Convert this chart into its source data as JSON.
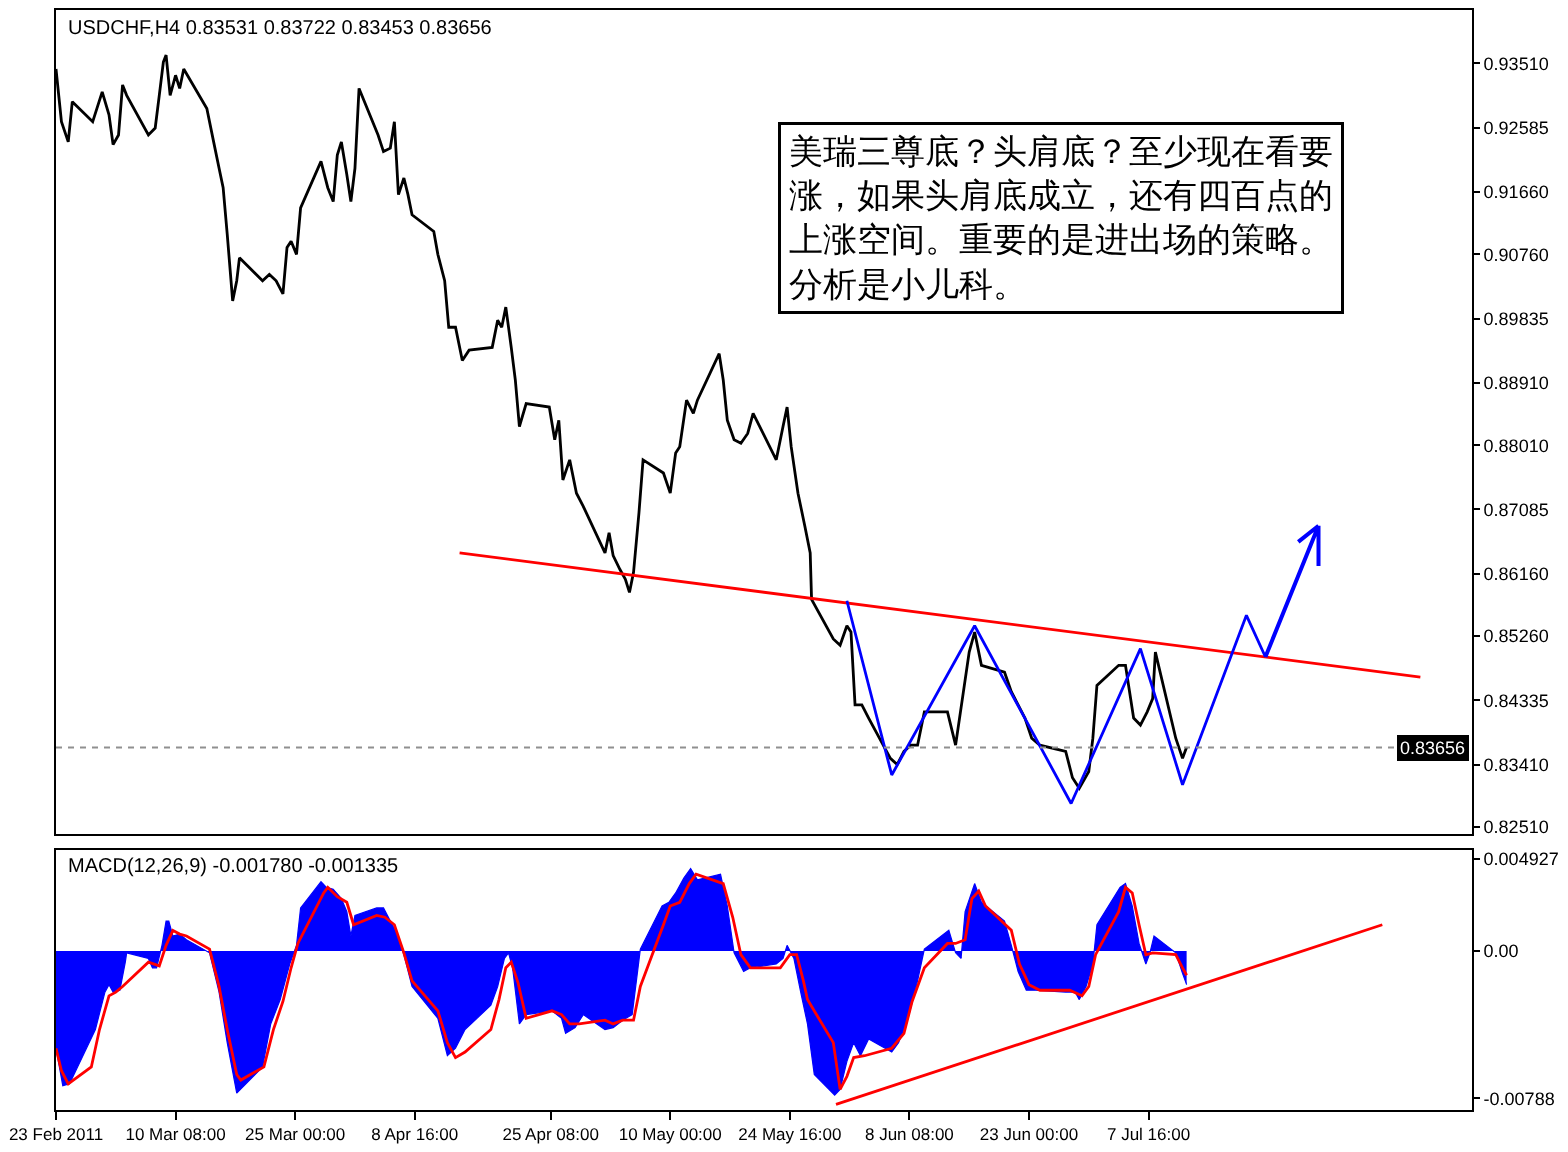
{
  "chart_data": [
    {
      "type": "line",
      "title": "USDCHF,H4 0.83531 0.83722 0.83453 0.83656",
      "series": [
        {
          "color": "#000000",
          "x": [
            "2011-02-23T16:00",
            "2011-02-24T08:00",
            "2011-02-25T04:00",
            "2011-02-25T16:00",
            "2011-02-28T04:00",
            "2011-03-01T08:00",
            "2011-03-02T04:00",
            "2011-03-02T16:00",
            "2011-03-03T08:00",
            "2011-03-03T20:00",
            "2011-03-04T08:00",
            "2011-03-07T00:00",
            "2011-03-07T20:00",
            "2011-03-08T08:00",
            "2011-03-08T20:00",
            "2011-03-09T04:00",
            "2011-03-09T16:00",
            "2011-03-10T08:00",
            "2011-03-10T20:00",
            "2011-03-11T08:00",
            "2011-03-14T04:00",
            "2011-03-15T00:00",
            "2011-03-15T16:00",
            "2011-03-16T04:00",
            "2011-03-16T16:00",
            "2011-03-17T08:00",
            "2011-03-17T20:00",
            "2011-03-18T04:00",
            "2011-03-21T00:00",
            "2011-03-21T20:00",
            "2011-03-22T16:00",
            "2011-03-23T12:00",
            "2011-03-24T00:00",
            "2011-03-24T12:00",
            "2011-03-25T04:00",
            "2011-03-25T16:00",
            "2011-03-28T04:00",
            "2011-03-29T00:00",
            "2011-03-29T16:00",
            "2011-03-30T04:00",
            "2011-03-30T16:00",
            "2011-03-31T08:00",
            "2011-03-31T20:00",
            "2011-04-01T08:00",
            "2011-04-01T20:00",
            "2011-04-04T04:00",
            "2011-04-04T20:00",
            "2011-04-05T16:00",
            "2011-04-06T04:00",
            "2011-04-06T16:00",
            "2011-04-07T08:00",
            "2011-04-07T20:00",
            "2011-04-08T08:00",
            "2011-04-11T00:00",
            "2011-04-11T12:00",
            "2011-04-12T08:00",
            "2011-04-12T20:00",
            "2011-04-13T16:00",
            "2011-04-14T12:00",
            "2011-04-15T08:00",
            "2011-04-18T04:00",
            "2011-04-18T20:00",
            "2011-04-19T08:00",
            "2011-04-19T20:00",
            "2011-04-20T12:00",
            "2011-04-21T00:00",
            "2011-04-21T12:00",
            "2011-04-22T08:00",
            "2011-04-25T04:00",
            "2011-04-25T20:00",
            "2011-04-26T08:00",
            "2011-04-26T20:00",
            "2011-04-27T16:00",
            "2011-04-28T12:00",
            "2011-04-29T08:00",
            "2011-05-02T00:00",
            "2011-05-02T12:00",
            "2011-05-03T00:00",
            "2011-05-03T20:00",
            "2011-05-04T12:00",
            "2011-05-05T00:00",
            "2011-05-05T12:00",
            "2011-05-06T04:00",
            "2011-05-06T16:00",
            "2011-05-09T04:00",
            "2011-05-10T00:00",
            "2011-05-10T16:00",
            "2011-05-11T04:00",
            "2011-05-12T00:00",
            "2011-05-12T20:00",
            "2011-05-13T08:00",
            "2011-05-16T00:00",
            "2011-05-16T12:00",
            "2011-05-17T00:00",
            "2011-05-17T20:00",
            "2011-05-18T16:00",
            "2011-05-19T12:00",
            "2011-05-20T04:00",
            "2011-05-23T00:00",
            "2011-05-23T20:00",
            "2011-05-24T08:00",
            "2011-05-24T20:00",
            "2011-05-25T16:00",
            "2011-05-26T12:00",
            "2011-05-27T04:00",
            "2011-05-27T08:00",
            "2011-05-30T00:00",
            "2011-05-30T20:00",
            "2011-05-31T16:00",
            "2011-06-01T04:00",
            "2011-06-01T16:00",
            "2011-06-02T12:00",
            "2011-06-03T08:00",
            "2011-06-06T00:00",
            "2011-06-06T20:00",
            "2011-06-07T16:00",
            "2011-06-08T12:00",
            "2011-06-09T08:00",
            "2011-06-10T04:00",
            "2011-06-13T00:00",
            "2011-06-14T00:00",
            "2011-06-14T20:00",
            "2011-06-15T16:00",
            "2011-06-16T08:00",
            "2011-06-17T04:00",
            "2011-06-20T00:00",
            "2011-06-20T20:00",
            "2011-06-21T16:00",
            "2011-06-22T12:00",
            "2011-06-23T08:00",
            "2011-06-24T08:00",
            "2011-06-27T12:00",
            "2011-06-28T08:00",
            "2011-06-29T04:00",
            "2011-06-30T08:00",
            "2011-06-30T20:00",
            "2011-07-01T08:00",
            "2011-07-04T00:00",
            "2011-07-04T20:00",
            "2011-07-05T08:00",
            "2011-07-05T20:00",
            "2011-07-06T16:00",
            "2011-07-07T12:00",
            "2011-07-08T04:00",
            "2011-07-08T12:00",
            "2011-07-11T00:00",
            "2011-07-11T20:00",
            "2011-07-12T08:00"
          ],
          "values": [
            0.9343,
            0.9267,
            0.9238,
            0.9296,
            0.9267,
            0.931,
            0.9277,
            0.9234,
            0.9248,
            0.932,
            0.9305,
            0.9248,
            0.9258,
            0.9305,
            0.9353,
            0.9363,
            0.9305,
            0.9334,
            0.9315,
            0.9343,
            0.9286,
            0.9238,
            0.92,
            0.9172,
            0.9105,
            0.9009,
            0.9038,
            0.9071,
            0.9038,
            0.9047,
            0.9038,
            0.9019,
            0.9086,
            0.9095,
            0.9076,
            0.9143,
            0.921,
            0.9172,
            0.9152,
            0.9219,
            0.9238,
            0.9191,
            0.9152,
            0.92,
            0.9315,
            0.9248,
            0.9224,
            0.9229,
            0.9267,
            0.9162,
            0.9186,
            0.9162,
            0.9133,
            0.9109,
            0.9076,
            0.9038,
            0.8971,
            0.8971,
            0.8923,
            0.8938,
            0.8942,
            0.8981,
            0.8971,
            0.9,
            0.8942,
            0.8895,
            0.8828,
            0.8861,
            0.8856,
            0.8809,
            0.8837,
            0.8751,
            0.878,
            0.8732,
            0.8713,
            0.8646,
            0.8675,
            0.8642,
            0.8622,
            0.8608,
            0.8589,
            0.8618,
            0.8704,
            0.878,
            0.8761,
            0.8732,
            0.879,
            0.8799,
            0.8866,
            0.8847,
            0.8866,
            0.8933,
            0.8895,
            0.8837,
            0.8809,
            0.8804,
            0.8818,
            0.8847,
            0.878,
            0.8828,
            0.8856,
            0.8799,
            0.8732,
            0.8685,
            0.8646,
            0.8579,
            0.8522,
            0.8513,
            0.8541,
            0.8532,
            0.8427,
            0.8427,
            0.8408,
            0.835,
            0.8341,
            0.836,
            0.8369,
            0.8369,
            0.8417,
            0.8417,
            0.8369,
            0.8436,
            0.8503,
            0.8532,
            0.8484,
            0.8474,
            0.8446,
            0.8427,
            0.8408,
            0.8379,
            0.8369,
            0.836,
            0.8322,
            0.8307,
            0.8331,
            0.8379,
            0.8455,
            0.8484,
            0.8484,
            0.8446,
            0.8408,
            0.8398,
            0.8417,
            0.8436,
            0.8503,
            0.8379,
            0.835,
            0.8366
          ]
        },
        {
          "color": "#ff0000",
          "x": [
            "2011-04-14T04:00",
            "2011-08-10T00:00"
          ],
          "values": [
            0.8646,
            0.8467
          ]
        },
        {
          "color": "#0000ff",
          "x": [
            "2011-05-31T16:00",
            "2011-06-06T04:00",
            "2011-06-16T08:00",
            "2011-06-28T04:00",
            "2011-07-06T16:00",
            "2011-07-11T20:00",
            "2011-07-19T16:00",
            "2011-07-22T00:00"
          ],
          "values": [
            0.8577,
            0.8326,
            0.8541,
            0.8285,
            0.8508,
            0.8312,
            0.8556,
            0.8496
          ]
        }
      ],
      "xlim": [
        "2011-02-23T16:00",
        "2011-08-16T08:00"
      ],
      "ylim": [
        0.8241,
        0.9428
      ],
      "yticks": [
        {
          "value": 0.9351,
          "label": "0.93510"
        },
        0.92585,
        {
          "value": 0.9166,
          "label": "0.91660"
        },
        {
          "value": 0.9076,
          "label": "0.90760"
        },
        0.89835,
        {
          "value": 0.8891,
          "label": "0.88910"
        },
        {
          "value": 0.8801,
          "label": "0.88010"
        },
        0.87085,
        {
          "value": 0.8616,
          "label": "0.86160"
        },
        {
          "value": 0.8526,
          "label": "0.85260"
        },
        0.84335,
        {
          "value": 0.8341,
          "label": "0.83410"
        },
        {
          "value": 0.8251,
          "label": "0.82510"
        }
      ],
      "ref_lines": [
        {
          "axis": "y",
          "value": 0.83656,
          "label": "0.83656",
          "color": "#909090",
          "line_style": "dotted"
        }
      ],
      "annotations": [
        "美瑞三尊底？头肩底？至少现在看要涨，如果头肩底成立，还有四百点的上涨空间。重要的是进出场的策略。分析是小儿科。"
      ],
      "tick_labels": "y"
    },
    {
      "type": "area",
      "title": "MACD(12,26,9) -0.001780 -0.001335",
      "series": [
        {
          "type": "area",
          "color": "#0000ff",
          "x": [
            "2011-02-23T16:00",
            "2011-02-24T12:00",
            "2011-02-25T08:00",
            "2011-02-28T12:00",
            "2011-03-01T16:00",
            "2011-03-02T04:00",
            "2011-03-02T16:00",
            "2011-03-03T12:00",
            "2011-03-04T04:00",
            "2011-03-04T08:00",
            "2011-03-07T00:00",
            "2011-03-07T12:00",
            "2011-03-08T00:00",
            "2011-03-08T16:00",
            "2011-03-09T04:00",
            "2011-03-09T12:00",
            "2011-03-10T00:00",
            "2011-03-10T20:00",
            "2011-03-11T16:00",
            "2011-03-14T12:00",
            "2011-03-15T16:00",
            "2011-03-16T16:00",
            "2011-03-17T20:00",
            "2011-03-21T00:00",
            "2011-03-22T00:00",
            "2011-03-23T04:00",
            "2011-03-24T08:00",
            "2011-03-25T04:00",
            "2011-03-25T16:00",
            "2011-03-28T04:00",
            "2011-03-28T20:00",
            "2011-03-29T16:00",
            "2011-03-30T16:00",
            "2011-03-31T08:00",
            "2011-03-31T20:00",
            "2011-04-01T08:00",
            "2011-04-04T00:00",
            "2011-04-04T20:00",
            "2011-04-05T16:00",
            "2011-04-06T12:00",
            "2011-04-07T08:00",
            "2011-04-08T08:00",
            "2011-04-11T12:00",
            "2011-04-12T16:00",
            "2011-04-13T16:00",
            "2011-04-14T20:00",
            "2011-04-18T00:00",
            "2011-04-18T20:00",
            "2011-04-19T16:00",
            "2011-04-20T04:00",
            "2011-04-20T16:00",
            "2011-04-21T12:00",
            "2011-04-22T08:00",
            "2011-04-25T12:00",
            "2011-04-26T16:00",
            "2011-04-27T04:00",
            "2011-04-28T08:00",
            "2011-04-29T08:00",
            "2011-05-02T00:00",
            "2011-05-03T00:00",
            "2011-05-04T04:00",
            "2011-05-05T08:00",
            "2011-05-06T08:00",
            "2011-05-09T00:00",
            "2011-05-09T20:00",
            "2011-05-10T16:00",
            "2011-05-11T16:00",
            "2011-05-12T12:00",
            "2011-05-13T08:00",
            "2011-05-16T04:00",
            "2011-05-17T00:00",
            "2011-05-17T20:00",
            "2011-05-19T00:00",
            "2011-05-19T20:00",
            "2011-05-23T00:00",
            "2011-05-23T20:00",
            "2011-05-24T08:00",
            "2011-05-25T04:00",
            "2011-05-26T00:00",
            "2011-05-26T20:00",
            "2011-05-27T16:00",
            "2011-05-30T04:00",
            "2011-05-30T20:00",
            "2011-05-31T16:00",
            "2011-06-01T12:00",
            "2011-06-02T08:00",
            "2011-06-03T08:00",
            "2011-06-06T04:00",
            "2011-06-07T00:00",
            "2011-06-08T04:00",
            "2011-06-09T08:00",
            "2011-06-10T04:00",
            "2011-06-13T04:00",
            "2011-06-14T00:00",
            "2011-06-14T16:00",
            "2011-06-15T04:00",
            "2011-06-16T08:00",
            "2011-06-17T04:00",
            "2011-06-20T00:00",
            "2011-06-20T20:00",
            "2011-06-21T16:00",
            "2011-06-22T16:00",
            "2011-06-23T20:00",
            "2011-06-27T12:00",
            "2011-06-28T16:00",
            "2011-06-29T04:00",
            "2011-06-30T00:00",
            "2011-06-30T20:00",
            "2011-07-01T08:00",
            "2011-07-04T04:00",
            "2011-07-04T20:00",
            "2011-07-05T16:00",
            "2011-07-06T12:00",
            "2011-07-07T08:00",
            "2011-07-07T20:00",
            "2011-07-08T08:00",
            "2011-07-11T00:00",
            "2011-07-11T20:00",
            "2011-07-12T08:00"
          ],
          "values": [
            -0.0052,
            -0.0072,
            -0.0071,
            -0.0042,
            -0.0022,
            -0.0018,
            -0.0022,
            -0.0021,
            -0.0006,
            -0.0001,
            -0.0004,
            -0.0009,
            -0.0009,
            0.0003,
            0.0016,
            0.0016,
            0.0008,
            0.0009,
            0.0006,
            -0.0001,
            -0.0022,
            -0.0049,
            -0.0076,
            -0.0062,
            -0.0039,
            -0.0026,
            -0.0007,
            0.0003,
            0.0023,
            0.0037,
            0.0034,
            0.0033,
            0.0028,
            0.0021,
            0.0008,
            0.0019,
            0.0023,
            0.0023,
            0.0016,
            0.0009,
            -0.0002,
            -0.0019,
            -0.0036,
            -0.0056,
            -0.0052,
            -0.0042,
            -0.0029,
            -0.0019,
            -0.0004,
            -0.0001,
            -0.0009,
            -0.0039,
            -0.0034,
            -0.0032,
            -0.0036,
            -0.0044,
            -0.0041,
            -0.0034,
            -0.0042,
            -0.0041,
            -0.0037,
            -0.0034,
            0.0001,
            0.0024,
            0.0026,
            0.0031,
            0.0039,
            0.0044,
            0.0038,
            0.0041,
            0.0024,
            -0.0001,
            -0.0011,
            -0.0009,
            -0.0007,
            -0.0004,
            0.0003,
            -0.0004,
            -0.0022,
            -0.0039,
            -0.0066,
            -0.0077,
            -0.0074,
            -0.0059,
            -0.0049,
            -0.0056,
            -0.0047,
            -0.0054,
            -0.0049,
            -0.0036,
            -0.0016,
            0.0001,
            0.0011,
            -0.0001,
            -0.0004,
            0.0021,
            0.0036,
            0.0026,
            0.0016,
            0.0003,
            -0.0011,
            -0.0021,
            -0.0021,
            -0.0022,
            -0.0022,
            -0.0026,
            -0.0019,
            -0.0007,
            0.0014,
            0.0034,
            0.0036,
            0.0024,
            0.0004,
            -0.0007,
            -0.0001,
            0.0008,
            -0.0001,
            -0.0012,
            -0.0018
          ]
        },
        {
          "type": "line",
          "color": "#ff0000",
          "x": [
            "2011-02-23T16:00",
            "2011-02-24T08:00",
            "2011-02-25T04:00",
            "2011-02-28T00:00",
            "2011-03-01T00:00",
            "2011-03-02T04:00",
            "2011-03-03T00:00",
            "2011-03-03T20:00",
            "2011-03-07T00:00",
            "2011-03-08T08:00",
            "2011-03-09T04:00",
            "2011-03-10T00:00",
            "2011-03-10T20:00",
            "2011-03-11T16:00",
            "2011-03-14T12:00",
            "2011-03-15T16:00",
            "2011-03-16T16:00",
            "2011-03-17T20:00",
            "2011-03-18T08:00",
            "2011-03-21T04:00",
            "2011-03-22T08:00",
            "2011-03-23T12:00",
            "2011-03-24T12:00",
            "2011-03-25T08:00",
            "2011-03-28T12:00",
            "2011-03-29T00:00",
            "2011-03-30T04:00",
            "2011-03-31T08:00",
            "2011-04-01T04:00",
            "2011-04-04T00:00",
            "2011-04-05T00:00",
            "2011-04-06T04:00",
            "2011-04-07T08:00",
            "2011-04-08T08:00",
            "2011-04-11T12:00",
            "2011-04-12T16:00",
            "2011-04-13T16:00",
            "2011-04-14T20:00",
            "2011-04-18T00:00",
            "2011-04-19T00:00",
            "2011-04-19T20:00",
            "2011-04-20T12:00",
            "2011-04-21T08:00",
            "2011-04-22T08:00",
            "2011-04-25T12:00",
            "2011-04-26T16:00",
            "2011-04-27T16:00",
            "2011-04-28T20:00",
            "2011-05-02T00:00",
            "2011-05-03T00:00",
            "2011-05-04T04:00",
            "2011-05-05T12:00",
            "2011-05-06T08:00",
            "2011-05-09T04:00",
            "2011-05-10T00:00",
            "2011-05-11T04:00",
            "2011-05-12T08:00",
            "2011-05-13T04:00",
            "2011-05-16T12:00",
            "2011-05-17T16:00",
            "2011-05-18T16:00",
            "2011-05-19T20:00",
            "2011-05-23T12:00",
            "2011-05-24T16:00",
            "2011-05-25T12:00",
            "2011-05-26T08:00",
            "2011-05-26T20:00",
            "2011-05-30T00:00",
            "2011-05-30T20:00",
            "2011-05-31T16:00",
            "2011-06-01T12:00",
            "2011-06-02T20:00",
            "2011-06-06T04:00",
            "2011-06-07T16:00",
            "2011-06-08T16:00",
            "2011-06-10T04:00",
            "2011-06-13T00:00",
            "2011-06-14T00:00",
            "2011-06-15T04:00",
            "2011-06-16T00:00",
            "2011-06-16T20:00",
            "2011-06-17T16:00",
            "2011-06-20T20:00",
            "2011-06-21T20:00",
            "2011-06-23T00:00",
            "2011-06-24T08:00",
            "2011-06-28T00:00",
            "2011-06-29T12:00",
            "2011-06-30T08:00",
            "2011-07-01T04:00",
            "2011-07-04T00:00",
            "2011-07-04T20:00",
            "2011-07-05T16:00",
            "2011-07-06T12:00",
            "2011-07-07T08:00",
            "2011-07-08T04:00",
            "2011-07-11T00:00",
            "2011-07-11T20:00",
            "2011-07-12T08:00"
          ],
          "values": [
            -0.0052,
            -0.0064,
            -0.0071,
            -0.0062,
            -0.0042,
            -0.0024,
            -0.0022,
            -0.0019,
            -0.0006,
            -0.0008,
            0.0003,
            0.0011,
            0.0009,
            0.0008,
            0.0001,
            -0.0019,
            -0.0042,
            -0.0066,
            -0.0069,
            -0.0062,
            -0.0042,
            -0.0027,
            -0.0009,
            0.0004,
            0.0031,
            0.0034,
            0.0029,
            0.0026,
            0.0014,
            0.0019,
            0.0018,
            0.0014,
            -0.0001,
            -0.0016,
            -0.0032,
            -0.0049,
            -0.0057,
            -0.0054,
            -0.0042,
            -0.0026,
            -0.0009,
            -0.0006,
            -0.0017,
            -0.0036,
            -0.0032,
            -0.0034,
            -0.0039,
            -0.0039,
            -0.0037,
            -0.0039,
            -0.0037,
            -0.0037,
            -0.0019,
            0.0014,
            0.0024,
            0.0026,
            0.0036,
            0.0041,
            0.0036,
            0.0018,
            -0.0002,
            -0.0009,
            -0.0009,
            -0.0002,
            -0.0002,
            -0.0016,
            -0.0026,
            -0.0049,
            -0.0074,
            -0.0067,
            -0.0057,
            -0.0056,
            -0.0052,
            -0.0044,
            -0.0027,
            -0.0009,
            0.0004,
            0.0004,
            0.0006,
            0.0028,
            0.0032,
            0.0024,
            0.0011,
            -0.0007,
            -0.0018,
            -0.0021,
            -0.0021,
            -0.0024,
            -0.0019,
            -0.0002,
            0.0021,
            0.0034,
            0.0031,
            0.0014,
            -0.0002,
            -0.0001,
            -0.0002,
            -0.0009,
            -0.0013
          ]
        },
        {
          "type": "line",
          "color": "#ff0000",
          "x": [
            "2011-05-30T08:00",
            "2011-08-05T08:00"
          ],
          "values": [
            -0.0082,
            0.0014
          ]
        }
      ],
      "xlim": [
        "2011-02-23T16:00",
        "2011-08-16T08:00"
      ],
      "xticks": [
        {
          "value": "2011-02-23T16:00",
          "label": "23 Feb 2011"
        },
        {
          "value": "2011-03-10T08:00",
          "label": "10 Mar 08:00"
        },
        {
          "value": "2011-03-25T00:00",
          "label": "25 Mar 00:00"
        },
        {
          "value": "2011-04-08T16:00",
          "label": "8 Apr 16:00"
        },
        {
          "value": "2011-04-25T08:00",
          "label": "25 Apr 08:00"
        },
        {
          "value": "2011-05-10T00:00",
          "label": "10 May 00:00"
        },
        {
          "value": "2011-05-24T16:00",
          "label": "24 May 16:00"
        },
        {
          "value": "2011-06-08T08:00",
          "label": "8 Jun 08:00"
        },
        {
          "value": "2011-06-23T00:00",
          "label": "23 Jun 00:00"
        },
        {
          "value": "2011-07-07T16:00",
          "label": "7 Jul 16:00"
        }
      ],
      "ylim": [
        -0.0085,
        0.0054
      ],
      "yticks": [
        0.004927,
        {
          "value": 0,
          "label": "0.00"
        },
        -0.00788
      ]
    }
  ]
}
